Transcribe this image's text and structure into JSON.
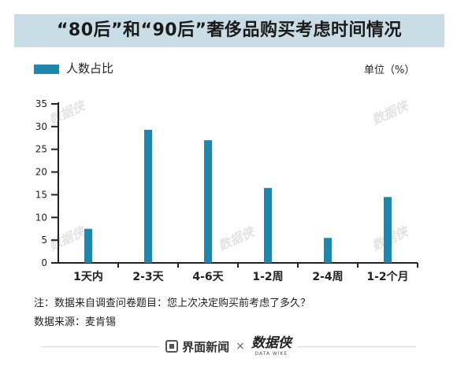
{
  "title": "“80后”和“90后”奢侈品购买考虑时间情况",
  "legend": {
    "label": "人数占比",
    "color": "#1f86ad"
  },
  "unit_label": "单位（%）",
  "note": "注：数据来自调查问卷题目：您上次决定购买前考虑了多久？",
  "source": "数据来源：麦肯锡",
  "footer": {
    "brand_left": "界面新闻",
    "separator": "×",
    "brand_right": "数据侠",
    "brand_right_sub": "DATA WIKE"
  },
  "watermark_text": "数据侠",
  "chart_data": {
    "type": "bar",
    "categories": [
      "1天内",
      "2-3天",
      "4-6天",
      "1-2周",
      "2-4周",
      "1-2个月"
    ],
    "series": [
      {
        "name": "人数占比",
        "values": [
          7.5,
          29.3,
          27,
          16.5,
          5.5,
          14.5
        ],
        "color": "#1f86ad"
      }
    ],
    "ylim": [
      0,
      35
    ],
    "yticks": [
      0,
      5,
      10,
      15,
      20,
      25,
      30,
      35
    ],
    "xlabel": "",
    "ylabel": "",
    "grid": false,
    "legend_position": "top-left"
  }
}
